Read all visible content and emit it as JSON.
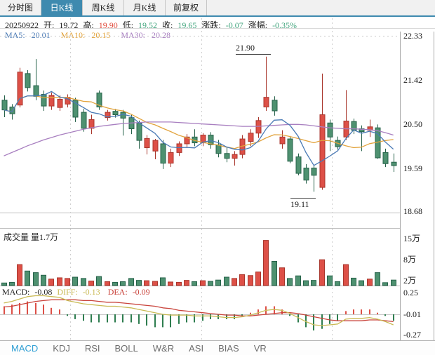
{
  "tabs": [
    {
      "label": "分时图",
      "selected": false
    },
    {
      "label": "日K线",
      "selected": true
    },
    {
      "label": "周K线",
      "selected": false
    },
    {
      "label": "月K线",
      "selected": false
    },
    {
      "label": "前复权",
      "selected": false
    }
  ],
  "info": {
    "date": "20250922",
    "open_label": "开:",
    "open_value": "19.72",
    "high_label": "高:",
    "high_value": "19.90",
    "low_label": "低:",
    "low_value": "19.52",
    "close_label": "收:",
    "close_value": "19.65",
    "change_label": "涨跌:",
    "change_value": "-0.07",
    "pct_label": "涨幅:",
    "pct_value": "-0.35%"
  },
  "ma": {
    "ma5_label": "MA5:",
    "ma5_value": "20.01",
    "ma10_label": "MA10:",
    "ma10_value": "20.15",
    "ma30_label": "MA30:",
    "ma30_value": "20.28"
  },
  "axis": {
    "price": [
      "22.33",
      "21.42",
      "20.50",
      "19.59",
      "18.68"
    ],
    "volume": [
      "15万",
      "8万",
      "2万"
    ],
    "macd": [
      "0.25",
      "-0.01",
      "-0.27"
    ]
  },
  "annotations": {
    "high": "21.90",
    "low": "19.11"
  },
  "volume_title": "成交量 量1.7万",
  "macd_info": {
    "macd_label": "MACD:",
    "macd_value": "-0.08",
    "diff_label": "DIFF:",
    "diff_value": "-0.13",
    "dea_label": "DEA:",
    "dea_value": "-0.09"
  },
  "bottom_tabs": [
    {
      "label": "MACD",
      "selected": true
    },
    {
      "label": "KDJ",
      "selected": false
    },
    {
      "label": "RSI",
      "selected": false
    },
    {
      "label": "BOLL",
      "selected": false
    },
    {
      "label": "W&R",
      "selected": false
    },
    {
      "label": "ASI",
      "selected": false
    },
    {
      "label": "BIAS",
      "selected": false
    },
    {
      "label": "VR",
      "selected": false
    }
  ],
  "colors": {
    "accent": "#3e8aaf",
    "up": "#dd5047",
    "up_stroke": "#a9362c",
    "down": "#4e9170",
    "down_stroke": "#27624a",
    "text_red": "#e04b3c",
    "text_green": "#43a57e",
    "ma5": "#4a7ab5",
    "ma10": "#e2a33c",
    "ma30": "#a87fc0",
    "diff": "#c9ba55",
    "dea": "#c9443c",
    "macd_tab_selected": "#2f9fd4",
    "grid": "#cfcfcf"
  },
  "chart_data": {
    "type": "candlestick+volume+macd",
    "date": "20250922",
    "last_day": {
      "open": 19.72,
      "high": 19.9,
      "low": 19.52,
      "close": 19.65,
      "change": -0.07,
      "pct": "-0.35%",
      "volume_wan": 1.7
    },
    "ma_values": {
      "ma5": 20.01,
      "ma10": 20.15,
      "ma30": 20.28
    },
    "panels": {
      "price": {
        "ylim": [
          18.68,
          22.33
        ],
        "ticks": [
          22.33,
          21.42,
          20.5,
          19.59,
          18.68
        ],
        "max_annotation": 21.9,
        "min_annotation": 19.11,
        "candles_ohlc": [
          [
            21.0,
            21.1,
            20.65,
            20.8
          ],
          [
            20.86,
            20.92,
            20.6,
            20.72
          ],
          [
            20.9,
            21.67,
            20.85,
            21.58
          ],
          [
            21.55,
            21.62,
            21.18,
            21.26
          ],
          [
            21.3,
            21.85,
            21.0,
            21.08
          ],
          [
            21.12,
            21.2,
            20.78,
            20.88
          ],
          [
            20.88,
            21.16,
            20.8,
            21.1
          ],
          [
            20.85,
            21.1,
            20.78,
            21.02
          ],
          [
            20.92,
            21.12,
            20.85,
            21.06
          ],
          [
            21.0,
            21.05,
            20.55,
            20.65
          ],
          [
            20.75,
            20.82,
            20.35,
            20.42
          ],
          [
            20.42,
            20.7,
            20.3,
            20.6
          ],
          [
            21.15,
            21.2,
            20.8,
            20.86
          ],
          [
            20.64,
            20.8,
            20.58,
            20.75
          ],
          [
            20.77,
            20.82,
            20.64,
            20.7
          ],
          [
            20.75,
            20.8,
            20.27,
            20.63
          ],
          [
            20.64,
            20.7,
            20.3,
            20.41
          ],
          [
            20.53,
            20.58,
            20.0,
            20.17
          ],
          [
            20.02,
            20.28,
            19.88,
            20.21
          ],
          [
            19.95,
            20.2,
            19.78,
            20.17
          ],
          [
            20.1,
            20.18,
            19.58,
            19.7
          ],
          [
            19.7,
            20.0,
            19.62,
            19.92
          ],
          [
            19.92,
            20.15,
            19.85,
            20.1
          ],
          [
            20.1,
            20.3,
            20.02,
            20.24
          ],
          [
            20.24,
            20.4,
            20.05,
            20.12
          ],
          [
            20.12,
            20.32,
            20.05,
            20.28
          ],
          [
            20.28,
            20.34,
            20.0,
            20.08
          ],
          [
            20.08,
            20.18,
            19.82,
            19.9
          ],
          [
            19.9,
            20.02,
            19.72,
            19.8
          ],
          [
            19.8,
            19.95,
            19.65,
            19.88
          ],
          [
            19.88,
            20.28,
            19.8,
            20.2
          ],
          [
            20.15,
            20.4,
            20.05,
            20.32
          ],
          [
            20.32,
            20.65,
            20.22,
            20.58
          ],
          [
            20.86,
            21.9,
            20.78,
            21.06
          ],
          [
            21.0,
            21.08,
            20.68,
            20.78
          ],
          [
            20.1,
            20.38,
            20.0,
            20.24
          ],
          [
            20.2,
            20.26,
            19.7,
            19.74
          ],
          [
            19.83,
            19.9,
            19.45,
            19.49
          ],
          [
            19.6,
            19.68,
            19.28,
            19.35
          ],
          [
            19.6,
            19.66,
            19.11,
            19.45
          ],
          [
            19.2,
            21.55,
            19.15,
            20.7
          ],
          [
            20.53,
            20.6,
            19.95,
            20.24
          ],
          [
            20.17,
            20.25,
            19.98,
            20.04
          ],
          [
            20.24,
            21.21,
            20.18,
            20.57
          ],
          [
            20.56,
            20.62,
            20.3,
            20.38
          ],
          [
            20.41,
            20.48,
            19.95,
            20.35
          ],
          [
            20.38,
            20.6,
            20.24,
            20.45
          ],
          [
            20.43,
            20.5,
            19.79,
            19.81
          ],
          [
            19.92,
            20.0,
            19.62,
            19.69
          ],
          [
            19.72,
            19.9,
            19.52,
            19.65
          ]
        ],
        "ma30_series": [
          19.85,
          19.92,
          19.99,
          20.06,
          20.12,
          20.18,
          20.23,
          20.28,
          20.32,
          20.36,
          20.4,
          20.43,
          20.46,
          20.48,
          20.5,
          20.52,
          20.53,
          20.54,
          20.55,
          20.55,
          20.55,
          20.55,
          20.54,
          20.53,
          20.52,
          20.51,
          20.5,
          20.49,
          20.48,
          20.47,
          20.46,
          20.46,
          20.46,
          20.47,
          20.48,
          20.49,
          20.5,
          20.5,
          20.49,
          20.47,
          20.45,
          20.43,
          20.42,
          20.41,
          20.41,
          20.4,
          20.39,
          20.37,
          20.33,
          20.28
        ]
      },
      "volume": {
        "unit": "万",
        "ticks": [
          15,
          8,
          2
        ],
        "values": [
          0.8,
          1.0,
          6.5,
          4.5,
          4.0,
          3.2,
          2.0,
          2.4,
          2.2,
          2.6,
          2.2,
          1.4,
          2.8,
          1.2,
          1.0,
          1.2,
          2.2,
          1.6,
          1.5,
          1.3,
          2.4,
          1.1,
          1.0,
          1.6,
          1.2,
          1.5,
          1.3,
          1.7,
          2.6,
          2.2,
          3.4,
          3.1,
          4.2,
          14.0,
          7.5,
          5.5,
          2.2,
          3.0,
          1.5,
          1.6,
          8.0,
          3.0,
          1.2,
          6.5,
          2.3,
          1.5,
          2.0,
          4.0,
          0.9,
          1.7
        ]
      },
      "macd": {
        "ticks": [
          0.25,
          -0.01,
          -0.27
        ],
        "macd": -0.08,
        "diff_last": -0.13,
        "dea_last": -0.09,
        "diff": [
          0.14,
          0.16,
          0.19,
          0.22,
          0.23,
          0.23,
          0.22,
          0.21,
          0.17,
          0.15,
          0.13,
          0.12,
          0.11,
          0.1,
          0.1,
          0.09,
          0.08,
          0.06,
          0.04,
          0.02,
          0.0,
          -0.01,
          -0.01,
          -0.01,
          -0.02,
          -0.02,
          -0.02,
          -0.03,
          -0.04,
          -0.04,
          -0.03,
          -0.01,
          0.02,
          0.05,
          0.06,
          0.05,
          0.01,
          -0.04,
          -0.09,
          -0.13,
          -0.14,
          -0.13,
          -0.12,
          -0.06,
          -0.05,
          -0.05,
          -0.04,
          -0.06,
          -0.09,
          -0.13
        ],
        "dea": [
          0.09,
          0.1,
          0.12,
          0.14,
          0.16,
          0.17,
          0.18,
          0.18,
          0.18,
          0.18,
          0.17,
          0.17,
          0.16,
          0.15,
          0.15,
          0.14,
          0.13,
          0.12,
          0.11,
          0.1,
          0.08,
          0.07,
          0.05,
          0.04,
          0.03,
          0.02,
          0.01,
          0.0,
          -0.01,
          -0.01,
          -0.02,
          -0.02,
          -0.01,
          0.0,
          0.01,
          0.02,
          0.02,
          0.01,
          -0.01,
          -0.03,
          -0.05,
          -0.07,
          -0.08,
          -0.08,
          -0.08,
          -0.08,
          -0.07,
          -0.07,
          -0.08,
          -0.09
        ]
      }
    }
  }
}
